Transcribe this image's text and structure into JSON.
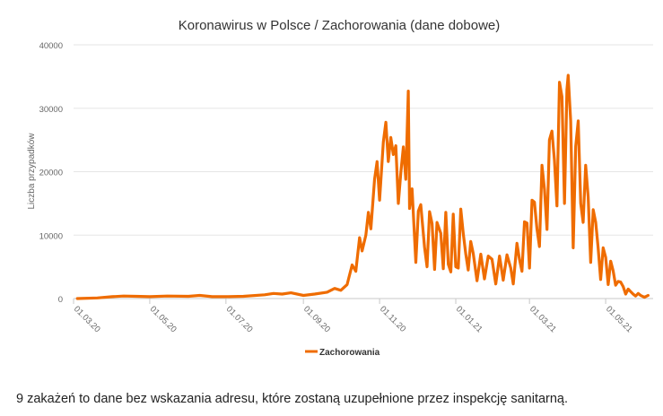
{
  "chart_data": {
    "type": "line",
    "title": "Koronawirus w Polsce / Zachorowania (dane dobowe)",
    "xlabel": "",
    "ylabel": "Liczba przypadków",
    "ylim": [
      0,
      40000
    ],
    "yticks": [
      0,
      10000,
      20000,
      30000,
      40000
    ],
    "xticks": [
      {
        "date": "2020-03-01",
        "label": "01.03.20"
      },
      {
        "date": "2020-05-01",
        "label": "01.05.20"
      },
      {
        "date": "2020-07-01",
        "label": "01.07.20"
      },
      {
        "date": "2020-09-01",
        "label": "01.09.20"
      },
      {
        "date": "2020-11-01",
        "label": "01.11.20"
      },
      {
        "date": "2021-01-01",
        "label": "01.01.21"
      },
      {
        "date": "2021-03-01",
        "label": "01.03.21"
      },
      {
        "date": "2021-05-01",
        "label": "01.05.21"
      }
    ],
    "grid": true,
    "legend_position": "bottom",
    "series": [
      {
        "name": "Zachorowania",
        "color": "#ef6c00",
        "points": [
          [
            "2020-03-04",
            1
          ],
          [
            "2020-03-20",
            100
          ],
          [
            "2020-04-01",
            300
          ],
          [
            "2020-04-10",
            400
          ],
          [
            "2020-04-20",
            350
          ],
          [
            "2020-05-01",
            300
          ],
          [
            "2020-05-15",
            400
          ],
          [
            "2020-06-01",
            350
          ],
          [
            "2020-06-10",
            500
          ],
          [
            "2020-06-20",
            300
          ],
          [
            "2020-07-01",
            300
          ],
          [
            "2020-07-15",
            350
          ],
          [
            "2020-08-01",
            600
          ],
          [
            "2020-08-08",
            800
          ],
          [
            "2020-08-15",
            700
          ],
          [
            "2020-08-22",
            900
          ],
          [
            "2020-09-01",
            500
          ],
          [
            "2020-09-10",
            700
          ],
          [
            "2020-09-20",
            1000
          ],
          [
            "2020-09-26",
            1600
          ],
          [
            "2020-10-01",
            1300
          ],
          [
            "2020-10-06",
            2200
          ],
          [
            "2020-10-10",
            5300
          ],
          [
            "2020-10-13",
            4300
          ],
          [
            "2020-10-16",
            9600
          ],
          [
            "2020-10-18",
            7500
          ],
          [
            "2020-10-21",
            10000
          ],
          [
            "2020-10-23",
            13600
          ],
          [
            "2020-10-25",
            11000
          ],
          [
            "2020-10-28",
            18800
          ],
          [
            "2020-10-30",
            21600
          ],
          [
            "2020-11-01",
            15500
          ],
          [
            "2020-11-04",
            24700
          ],
          [
            "2020-11-06",
            27800
          ],
          [
            "2020-11-08",
            21600
          ],
          [
            "2020-11-10",
            25400
          ],
          [
            "2020-11-12",
            22700
          ],
          [
            "2020-11-14",
            24100
          ],
          [
            "2020-11-16",
            15000
          ],
          [
            "2020-11-18",
            19900
          ],
          [
            "2020-11-20",
            23900
          ],
          [
            "2020-11-22",
            18800
          ],
          [
            "2020-11-24",
            32700
          ],
          [
            "2020-11-25",
            14200
          ],
          [
            "2020-11-27",
            17300
          ],
          [
            "2020-11-30",
            5700
          ],
          [
            "2020-12-02",
            13800
          ],
          [
            "2020-12-04",
            14800
          ],
          [
            "2020-12-07",
            8100
          ],
          [
            "2020-12-09",
            5000
          ],
          [
            "2020-12-11",
            13700
          ],
          [
            "2020-12-13",
            11800
          ],
          [
            "2020-12-15",
            4600
          ],
          [
            "2020-12-17",
            12000
          ],
          [
            "2020-12-20",
            10300
          ],
          [
            "2020-12-22",
            4700
          ],
          [
            "2020-12-24",
            13600
          ],
          [
            "2020-12-26",
            5400
          ],
          [
            "2020-12-28",
            4200
          ],
          [
            "2020-12-30",
            13300
          ],
          [
            "2021-01-01",
            5000
          ],
          [
            "2021-01-03",
            4800
          ],
          [
            "2021-01-05",
            14100
          ],
          [
            "2021-01-07",
            10200
          ],
          [
            "2021-01-09",
            7000
          ],
          [
            "2021-01-11",
            4500
          ],
          [
            "2021-01-13",
            9000
          ],
          [
            "2021-01-15",
            7100
          ],
          [
            "2021-01-18",
            2800
          ],
          [
            "2021-01-21",
            7000
          ],
          [
            "2021-01-24",
            3100
          ],
          [
            "2021-01-27",
            6700
          ],
          [
            "2021-01-30",
            6200
          ],
          [
            "2021-02-02",
            2300
          ],
          [
            "2021-02-05",
            6700
          ],
          [
            "2021-02-08",
            2900
          ],
          [
            "2021-02-11",
            6900
          ],
          [
            "2021-02-14",
            4800
          ],
          [
            "2021-02-16",
            2300
          ],
          [
            "2021-02-19",
            8700
          ],
          [
            "2021-02-21",
            6200
          ],
          [
            "2021-02-23",
            4300
          ],
          [
            "2021-02-25",
            12100
          ],
          [
            "2021-02-27",
            11900
          ],
          [
            "2021-03-01",
            4800
          ],
          [
            "2021-03-03",
            15500
          ],
          [
            "2021-03-05",
            15200
          ],
          [
            "2021-03-07",
            11000
          ],
          [
            "2021-03-09",
            8200
          ],
          [
            "2021-03-11",
            21000
          ],
          [
            "2021-03-13",
            17200
          ],
          [
            "2021-03-15",
            10900
          ],
          [
            "2021-03-17",
            25000
          ],
          [
            "2021-03-19",
            26400
          ],
          [
            "2021-03-21",
            21800
          ],
          [
            "2021-03-23",
            14600
          ],
          [
            "2021-03-25",
            34100
          ],
          [
            "2021-03-27",
            31800
          ],
          [
            "2021-03-29",
            15000
          ],
          [
            "2021-03-31",
            32900
          ],
          [
            "2021-04-01",
            35200
          ],
          [
            "2021-04-03",
            28000
          ],
          [
            "2021-04-05",
            8000
          ],
          [
            "2021-04-07",
            24000
          ],
          [
            "2021-04-09",
            28000
          ],
          [
            "2021-04-11",
            15000
          ],
          [
            "2021-04-13",
            12000
          ],
          [
            "2021-04-15",
            21000
          ],
          [
            "2021-04-17",
            16000
          ],
          [
            "2021-04-19",
            5700
          ],
          [
            "2021-04-21",
            14000
          ],
          [
            "2021-04-23",
            12000
          ],
          [
            "2021-04-25",
            8000
          ],
          [
            "2021-04-27",
            3000
          ],
          [
            "2021-04-29",
            8000
          ],
          [
            "2021-05-01",
            6500
          ],
          [
            "2021-05-03",
            2200
          ],
          [
            "2021-05-05",
            5900
          ],
          [
            "2021-05-07",
            4400
          ],
          [
            "2021-05-09",
            2100
          ],
          [
            "2021-05-11",
            2700
          ],
          [
            "2021-05-13",
            2600
          ],
          [
            "2021-05-15",
            1900
          ],
          [
            "2021-05-17",
            700
          ],
          [
            "2021-05-19",
            1500
          ],
          [
            "2021-05-21",
            1100
          ],
          [
            "2021-05-23",
            700
          ],
          [
            "2021-05-25",
            400
          ],
          [
            "2021-05-27",
            800
          ],
          [
            "2021-05-29",
            500
          ],
          [
            "2021-06-01",
            200
          ],
          [
            "2021-06-04",
            500
          ]
        ]
      }
    ]
  },
  "footnote": "9 zakażeń to dane bez wskazania adresu, które zostaną uzupełnione przez inspekcję sanitarną."
}
